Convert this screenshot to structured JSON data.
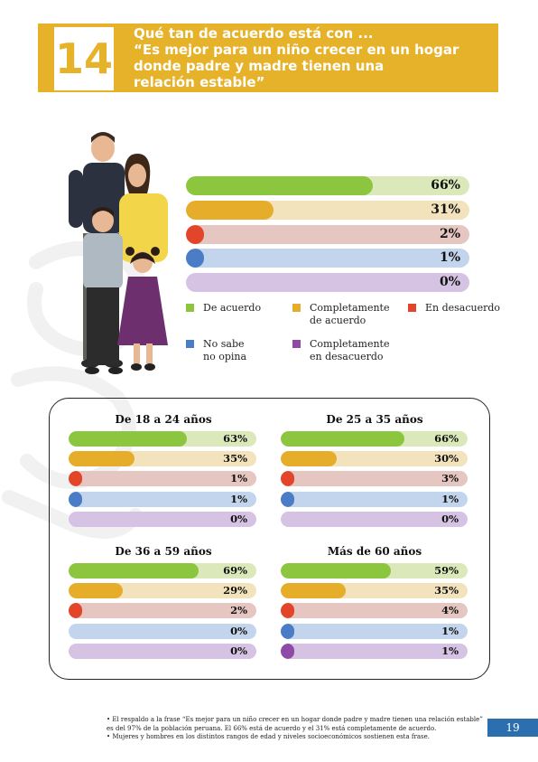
{
  "header": {
    "number": "14",
    "title_lines": [
      "Qué tan de acuerdo está con ...",
      "“Es mejor para un niño crecer en un hogar",
      "donde padre y madre tienen una",
      "relación estable”"
    ]
  },
  "colors": {
    "acuerdo": "#8cc63f",
    "completamente_acuerdo": "#e5ad2a",
    "desacuerdo": "#e2452a",
    "no_sabe": "#4a7dc6",
    "completamente_desacuerdo": "#8e4aa6",
    "track_acuerdo": "#dbe8b9",
    "track_completamente_acuerdo": "#f2e3bd",
    "track_desacuerdo": "#e6c6c0",
    "track_no_sabe": "#c3d5ec",
    "track_completamente_desacuerdo": "#d6c3e4"
  },
  "legend": [
    {
      "key": "acuerdo",
      "label": "De acuerdo"
    },
    {
      "key": "completamente_acuerdo",
      "label": "Completamente\nde acuerdo"
    },
    {
      "key": "desacuerdo",
      "label": "En desacuerdo"
    },
    {
      "key": "no_sabe",
      "label": "No sabe\nno opina"
    },
    {
      "key": "completamente_desacuerdo",
      "label": "Completamente\nen  desacuerdo"
    }
  ],
  "chart_data": [
    {
      "type": "bar",
      "orientation": "horizontal",
      "title": "",
      "categories": [
        "De acuerdo",
        "Completamente de acuerdo",
        "En desacuerdo",
        "No sabe no opina",
        "Completamente en desacuerdo"
      ],
      "values": [
        66,
        31,
        2,
        1,
        0
      ],
      "labels": [
        "66%",
        "31%",
        "2%",
        "1%",
        "0%"
      ],
      "xlim": [
        0,
        100
      ]
    },
    {
      "type": "bar",
      "orientation": "horizontal",
      "title": "De 18 a 24 años",
      "categories": [
        "De acuerdo",
        "Completamente de acuerdo",
        "En desacuerdo",
        "No sabe no opina",
        "Completamente en desacuerdo"
      ],
      "values": [
        63,
        35,
        1,
        1,
        0
      ],
      "labels": [
        "63%",
        "35%",
        "1%",
        "1%",
        "0%"
      ],
      "xlim": [
        0,
        100
      ]
    },
    {
      "type": "bar",
      "orientation": "horizontal",
      "title": "De 25 a 35 años",
      "categories": [
        "De acuerdo",
        "Completamente de acuerdo",
        "En desacuerdo",
        "No sabe no opina",
        "Completamente en desacuerdo"
      ],
      "values": [
        66,
        30,
        3,
        1,
        0
      ],
      "labels": [
        "66%",
        "30%",
        "3%",
        "1%",
        "0%"
      ],
      "xlim": [
        0,
        100
      ]
    },
    {
      "type": "bar",
      "orientation": "horizontal",
      "title": "De 36 a 59 años",
      "categories": [
        "De acuerdo",
        "Completamente de acuerdo",
        "En desacuerdo",
        "No sabe no opina",
        "Completamente en desacuerdo"
      ],
      "values": [
        69,
        29,
        2,
        0,
        0
      ],
      "labels": [
        "69%",
        "29%",
        "2%",
        "0%",
        "0%"
      ],
      "xlim": [
        0,
        100
      ]
    },
    {
      "type": "bar",
      "orientation": "horizontal",
      "title": "Más de 60 años",
      "categories": [
        "De acuerdo",
        "Completamente de acuerdo",
        "En desacuerdo",
        "No sabe no opina",
        "Completamente en desacuerdo"
      ],
      "values": [
        59,
        35,
        4,
        1,
        1
      ],
      "labels": [
        "59%",
        "35%",
        "4%",
        "1%",
        "1%"
      ],
      "xlim": [
        0,
        100
      ]
    }
  ],
  "footnotes": [
    "• El respaldo a la frase “Es mejor para un niño crecer en un hogar donde padre y madre tienen una relación estable” es del 97% de la población peruana. El 66% está de acuerdo y el 31% está completamente de acuerdo.",
    "• Mujeres y hombres en los distintos rangos de edad y niveles socioeconómicos sostienen esta frase."
  ],
  "page_number": "19"
}
